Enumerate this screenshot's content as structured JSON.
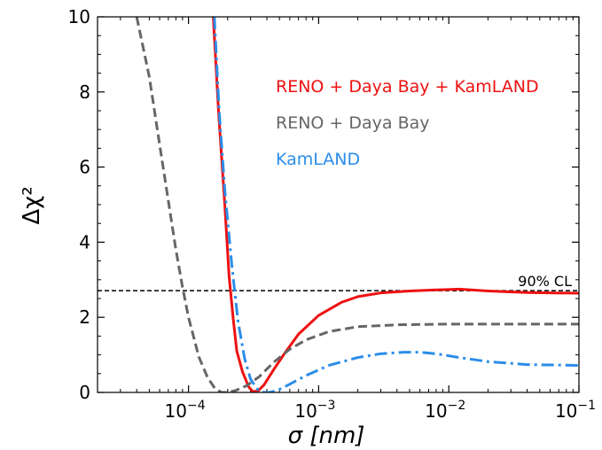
{
  "chart_data": {
    "type": "line",
    "title": "",
    "xlabel": "σ [nm]",
    "ylabel": "Δχ²",
    "xscale": "log",
    "xlim": [
      2e-05,
      0.1
    ],
    "ylim": [
      0,
      10
    ],
    "grid": false,
    "legend_placement": "top-right",
    "x_ticks": [
      {
        "value": 0.0001,
        "base": "10",
        "exp": "−4"
      },
      {
        "value": 0.001,
        "base": "10",
        "exp": "−3"
      },
      {
        "value": 0.01,
        "base": "10",
        "exp": "−2"
      },
      {
        "value": 0.1,
        "base": "10",
        "exp": "−1"
      }
    ],
    "y_ticks": [
      {
        "value": 0,
        "label": "0"
      },
      {
        "value": 2,
        "label": "2"
      },
      {
        "value": 4,
        "label": "4"
      },
      {
        "value": 6,
        "label": "6"
      },
      {
        "value": 8,
        "label": "8"
      },
      {
        "value": 10,
        "label": "10"
      }
    ],
    "series": [
      {
        "name": "RENO + Daya Bay + KamLAND",
        "color": "#ee1111",
        "style": "solid",
        "points": [
          [
            0.000155,
            10.0
          ],
          [
            0.00017,
            7.5
          ],
          [
            0.00019,
            5.0
          ],
          [
            0.000205,
            3.1
          ],
          [
            0.00022,
            2.0
          ],
          [
            0.000235,
            1.1
          ],
          [
            0.00026,
            0.55
          ],
          [
            0.00029,
            0.15
          ],
          [
            0.00031,
            0.03
          ],
          [
            0.00034,
            0.03
          ],
          [
            0.00038,
            0.2
          ],
          [
            0.00045,
            0.6
          ],
          [
            0.00055,
            1.05
          ],
          [
            0.0007,
            1.55
          ],
          [
            0.001,
            2.05
          ],
          [
            0.0015,
            2.4
          ],
          [
            0.002,
            2.55
          ],
          [
            0.003,
            2.65
          ],
          [
            0.005,
            2.7
          ],
          [
            0.008,
            2.73
          ],
          [
            0.012,
            2.75
          ],
          [
            0.02,
            2.7
          ],
          [
            0.04,
            2.66
          ],
          [
            0.1,
            2.64
          ]
        ]
      },
      {
        "name": "RENO + Daya Bay",
        "color": "#666666",
        "style": "dashed",
        "points": [
          [
            4e-05,
            10.0
          ],
          [
            5e-05,
            8.4
          ],
          [
            6e-05,
            6.6
          ],
          [
            7e-05,
            5.1
          ],
          [
            8e-05,
            3.8
          ],
          [
            9e-05,
            2.8
          ],
          [
            0.0001,
            2.0
          ],
          [
            0.00012,
            0.95
          ],
          [
            0.00014,
            0.4
          ],
          [
            0.00016,
            0.1
          ],
          [
            0.00018,
            0.0
          ],
          [
            0.0002,
            0.0
          ],
          [
            0.00023,
            0.05
          ],
          [
            0.00028,
            0.18
          ],
          [
            0.00035,
            0.42
          ],
          [
            0.00045,
            0.8
          ],
          [
            0.0006,
            1.15
          ],
          [
            0.0008,
            1.4
          ],
          [
            0.0012,
            1.62
          ],
          [
            0.002,
            1.75
          ],
          [
            0.004,
            1.8
          ],
          [
            0.01,
            1.82
          ],
          [
            0.1,
            1.82
          ]
        ]
      },
      {
        "name": "KamLAND",
        "color": "#2b8de8",
        "style": "dashdot",
        "points": [
          [
            0.000158,
            10.0
          ],
          [
            0.000172,
            7.5
          ],
          [
            0.00019,
            5.4
          ],
          [
            0.000215,
            3.4
          ],
          [
            0.00024,
            1.9
          ],
          [
            0.00027,
            0.9
          ],
          [
            0.0003,
            0.35
          ],
          [
            0.00034,
            0.08
          ],
          [
            0.00038,
            0.0
          ],
          [
            0.00042,
            0.0
          ],
          [
            0.00048,
            0.05
          ],
          [
            0.0006,
            0.22
          ],
          [
            0.0008,
            0.45
          ],
          [
            0.0012,
            0.72
          ],
          [
            0.002,
            0.93
          ],
          [
            0.003,
            1.03
          ],
          [
            0.0045,
            1.07
          ],
          [
            0.006,
            1.07
          ],
          [
            0.008,
            1.03
          ],
          [
            0.012,
            0.93
          ],
          [
            0.02,
            0.82
          ],
          [
            0.04,
            0.74
          ],
          [
            0.1,
            0.72
          ]
        ]
      }
    ],
    "reference_line": {
      "y": 2.71,
      "label": "90% CL",
      "color": "#000000",
      "style": "dashed"
    }
  }
}
